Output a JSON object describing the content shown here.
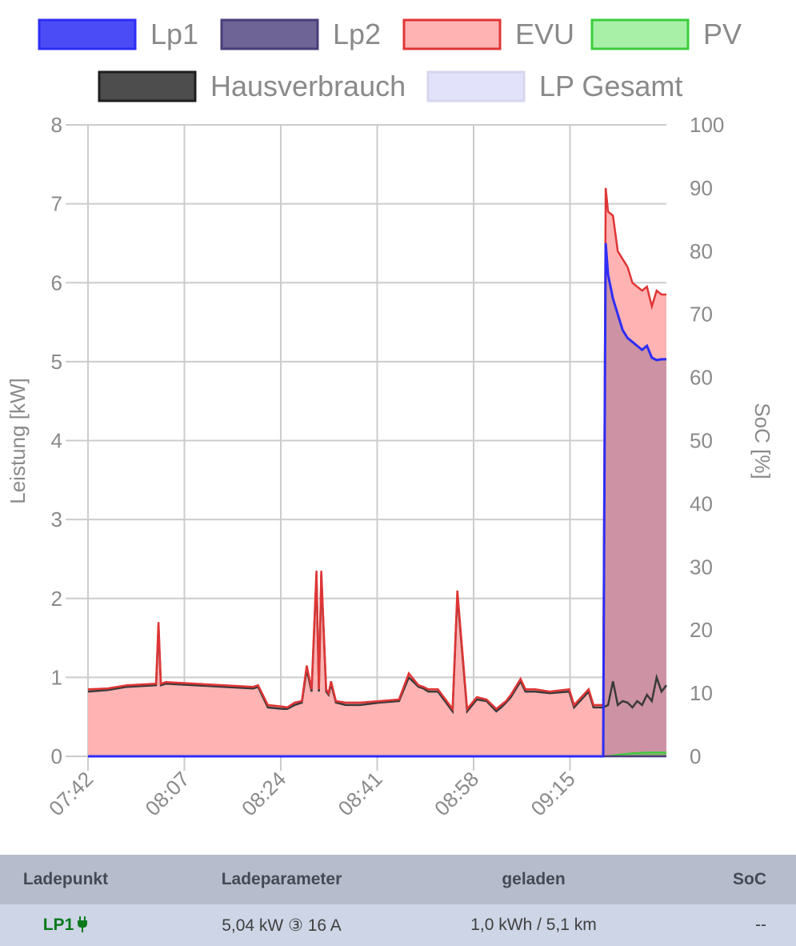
{
  "colors": {
    "lp1": "#2d2df5",
    "lp2": "#4a3d7a",
    "evu": "#e03535",
    "evu_fill": "#ffb3b3",
    "pv": "#3ccc3c",
    "haus": "#3a3a3a",
    "lpgesamt_fill": "#e2e2fb",
    "grid": "#cccccc",
    "text": "#8a8a8a",
    "active_lp": "#0a7a1a"
  },
  "chart_data": {
    "type": "area",
    "legend_position": "top",
    "grid": true,
    "ylabel": "Leistung [kW]",
    "y2label": "SoC [%]",
    "ylim": [
      0,
      8
    ],
    "y2lim": [
      0,
      100
    ],
    "y_ticks": [
      "0",
      "1",
      "2",
      "3",
      "4",
      "5",
      "6",
      "7",
      "8"
    ],
    "y2_ticks": [
      "0",
      "10",
      "20",
      "30",
      "40",
      "50",
      "60",
      "70",
      "80",
      "90",
      "100"
    ],
    "x_ticks": [
      "07:42",
      "08:07",
      "08:24",
      "08:41",
      "08:58",
      "09:15"
    ],
    "x_range_minutes": [
      0,
      119
    ],
    "legend": [
      "Lp1",
      "Lp2",
      "EVU",
      "PV",
      "Hausverbrauch",
      "LP Gesamt"
    ],
    "series": [
      {
        "name": "EVU",
        "t": [
          0,
          4,
          8,
          14,
          14.5,
          15,
          16,
          22,
          28,
          34,
          35,
          37,
          40,
          41,
          42.5,
          44,
          45,
          46,
          47,
          47.5,
          48,
          49,
          49.5,
          50,
          51,
          53,
          56,
          60,
          64,
          66,
          68,
          69,
          70,
          72,
          75,
          76,
          78,
          80,
          82,
          84,
          85,
          86,
          87,
          89,
          90,
          92,
          95,
          99,
          100,
          103,
          104,
          105,
          106,
          106.5,
          107,
          108,
          109,
          110,
          111,
          112,
          113,
          114,
          115,
          116,
          117,
          118,
          119
        ],
        "v": [
          0.85,
          0.86,
          0.9,
          0.92,
          1.7,
          0.92,
          0.94,
          0.92,
          0.9,
          0.88,
          0.9,
          0.65,
          0.63,
          0.62,
          0.68,
          0.7,
          1.15,
          0.85,
          2.35,
          0.85,
          2.35,
          0.85,
          0.8,
          0.95,
          0.7,
          0.68,
          0.68,
          0.7,
          0.72,
          1.05,
          0.9,
          0.88,
          0.85,
          0.85,
          0.6,
          2.1,
          0.6,
          0.75,
          0.72,
          0.6,
          0.65,
          0.7,
          0.78,
          0.98,
          0.85,
          0.85,
          0.82,
          0.85,
          0.65,
          0.85,
          0.65,
          0.65,
          0.65,
          7.2,
          6.9,
          6.85,
          6.4,
          6.3,
          6.2,
          6.0,
          5.95,
          5.9,
          5.95,
          5.7,
          5.9,
          5.85,
          5.85
        ]
      },
      {
        "name": "Lp1",
        "t": [
          0,
          106,
          106.2,
          106.5,
          107,
          108,
          109,
          110,
          111,
          112,
          113,
          114,
          115,
          116,
          117,
          118,
          119
        ],
        "v": [
          0,
          0,
          2.8,
          6.5,
          6.1,
          5.8,
          5.6,
          5.4,
          5.3,
          5.25,
          5.2,
          5.15,
          5.2,
          5.05,
          5.02,
          5.03,
          5.03
        ]
      },
      {
        "name": "Hausverbrauch",
        "t": [
          0,
          4,
          8,
          14,
          14.5,
          15,
          16,
          22,
          28,
          34,
          35,
          37,
          40,
          41,
          42.5,
          44,
          45,
          46,
          47,
          47.5,
          48,
          49,
          49.5,
          50,
          51,
          53,
          56,
          60,
          64,
          66,
          68,
          69,
          70,
          72,
          75,
          76,
          78,
          80,
          82,
          84,
          85,
          86,
          87,
          89,
          90,
          92,
          95,
          99,
          100,
          103,
          104,
          105,
          106,
          107,
          108,
          109,
          110,
          111,
          112,
          113,
          114,
          115,
          116,
          117,
          118,
          119
        ],
        "v": [
          0.82,
          0.84,
          0.88,
          0.9,
          1.65,
          0.9,
          0.92,
          0.9,
          0.88,
          0.86,
          0.88,
          0.62,
          0.6,
          0.6,
          0.65,
          0.68,
          1.1,
          0.82,
          2.3,
          0.82,
          2.3,
          0.82,
          0.78,
          0.92,
          0.68,
          0.65,
          0.65,
          0.68,
          0.7,
          1.0,
          0.88,
          0.86,
          0.82,
          0.82,
          0.57,
          2.05,
          0.57,
          0.72,
          0.7,
          0.57,
          0.62,
          0.68,
          0.75,
          0.95,
          0.82,
          0.82,
          0.8,
          0.82,
          0.62,
          0.82,
          0.62,
          0.62,
          0.62,
          0.65,
          0.95,
          0.65,
          0.7,
          0.68,
          0.62,
          0.7,
          0.65,
          0.78,
          0.7,
          1.0,
          0.82,
          0.9,
          0.85
        ]
      },
      {
        "name": "PV",
        "t": [
          0,
          106.5,
          109,
          112,
          115,
          119
        ],
        "v": [
          0,
          0,
          0.02,
          0.04,
          0.05,
          0.05
        ]
      },
      {
        "name": "Lp2",
        "t": [
          0,
          119
        ],
        "v": [
          0,
          0
        ]
      },
      {
        "name": "LP Gesamt",
        "t": [
          0,
          106,
          106.2,
          106.5,
          107,
          108,
          109,
          110,
          111,
          112,
          113,
          114,
          115,
          116,
          117,
          118,
          119
        ],
        "v": [
          0,
          0,
          2.8,
          6.5,
          6.1,
          5.8,
          5.6,
          5.4,
          5.3,
          5.25,
          5.2,
          5.15,
          5.2,
          5.05,
          5.02,
          5.03,
          5.03
        ]
      }
    ]
  },
  "table": {
    "headers": [
      "Ladepunkt",
      "Ladeparameter",
      "geladen",
      "SoC"
    ],
    "rows": [
      {
        "ladepunkt": "LP1",
        "plug_icon": "plug-icon",
        "ladeparameter": "5,04 kW ③ 16 A",
        "geladen": "1,0 kWh / 5,1 km",
        "soc": "--"
      }
    ]
  }
}
